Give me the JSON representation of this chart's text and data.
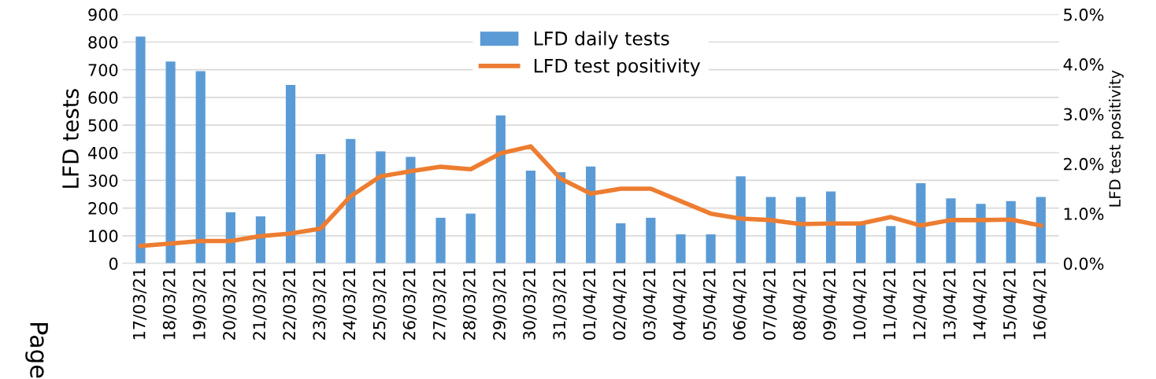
{
  "chart_data": {
    "type": "bar",
    "categories": [
      "17/03/21",
      "18/03/21",
      "19/03/21",
      "20/03/21",
      "21/03/21",
      "22/03/21",
      "23/03/21",
      "24/03/21",
      "25/03/21",
      "26/03/21",
      "27/03/21",
      "28/03/21",
      "29/03/21",
      "30/03/21",
      "31/03/21",
      "01/04/21",
      "02/04/21",
      "03/04/21",
      "04/04/21",
      "05/04/21",
      "06/04/21",
      "07/04/21",
      "08/04/21",
      "09/04/21",
      "10/04/21",
      "11/04/21",
      "12/04/21",
      "13/04/21",
      "14/04/21",
      "15/04/21",
      "16/04/21"
    ],
    "series": [
      {
        "name": "LFD daily tests",
        "color": "#5b9bd5",
        "values": [
          820,
          730,
          695,
          185,
          170,
          645,
          395,
          450,
          405,
          385,
          165,
          180,
          535,
          335,
          330,
          350,
          145,
          165,
          105,
          105,
          315,
          240,
          240,
          260,
          145,
          135,
          290,
          235,
          215,
          225,
          240
        ]
      },
      {
        "name": "LFD test positivity",
        "type": "line",
        "axis": "y2",
        "color": "#ed7d31",
        "values": [
          0.35,
          0.4,
          0.45,
          0.45,
          0.55,
          0.6,
          0.7,
          1.35,
          1.75,
          1.85,
          1.94,
          1.89,
          2.21,
          2.35,
          1.7,
          1.4,
          1.5,
          1.5,
          1.25,
          1.0,
          0.9,
          0.87,
          0.79,
          0.8,
          0.8,
          0.93,
          0.76,
          0.87,
          0.87,
          0.88,
          0.76
        ]
      }
    ],
    "ylabel": "LFD tests",
    "y2label": "LFD test positivity",
    "ylim": [
      0,
      900
    ],
    "yticks": [
      0,
      100,
      200,
      300,
      400,
      500,
      600,
      700,
      800,
      900
    ],
    "y2lim": [
      0,
      5
    ],
    "y2ticks": [
      {
        "value": 0,
        "label": "0.0%"
      },
      {
        "value": 1,
        "label": "1.0%"
      },
      {
        "value": 2,
        "label": "2.0%"
      },
      {
        "value": 3,
        "label": "3.0%"
      },
      {
        "value": 4,
        "label": "4.0%"
      },
      {
        "value": 5,
        "label": "5.0%"
      }
    ],
    "grid": "y",
    "legend": "top",
    "marker": "none",
    "line_style": "solid",
    "annotations": [
      "Page"
    ]
  }
}
